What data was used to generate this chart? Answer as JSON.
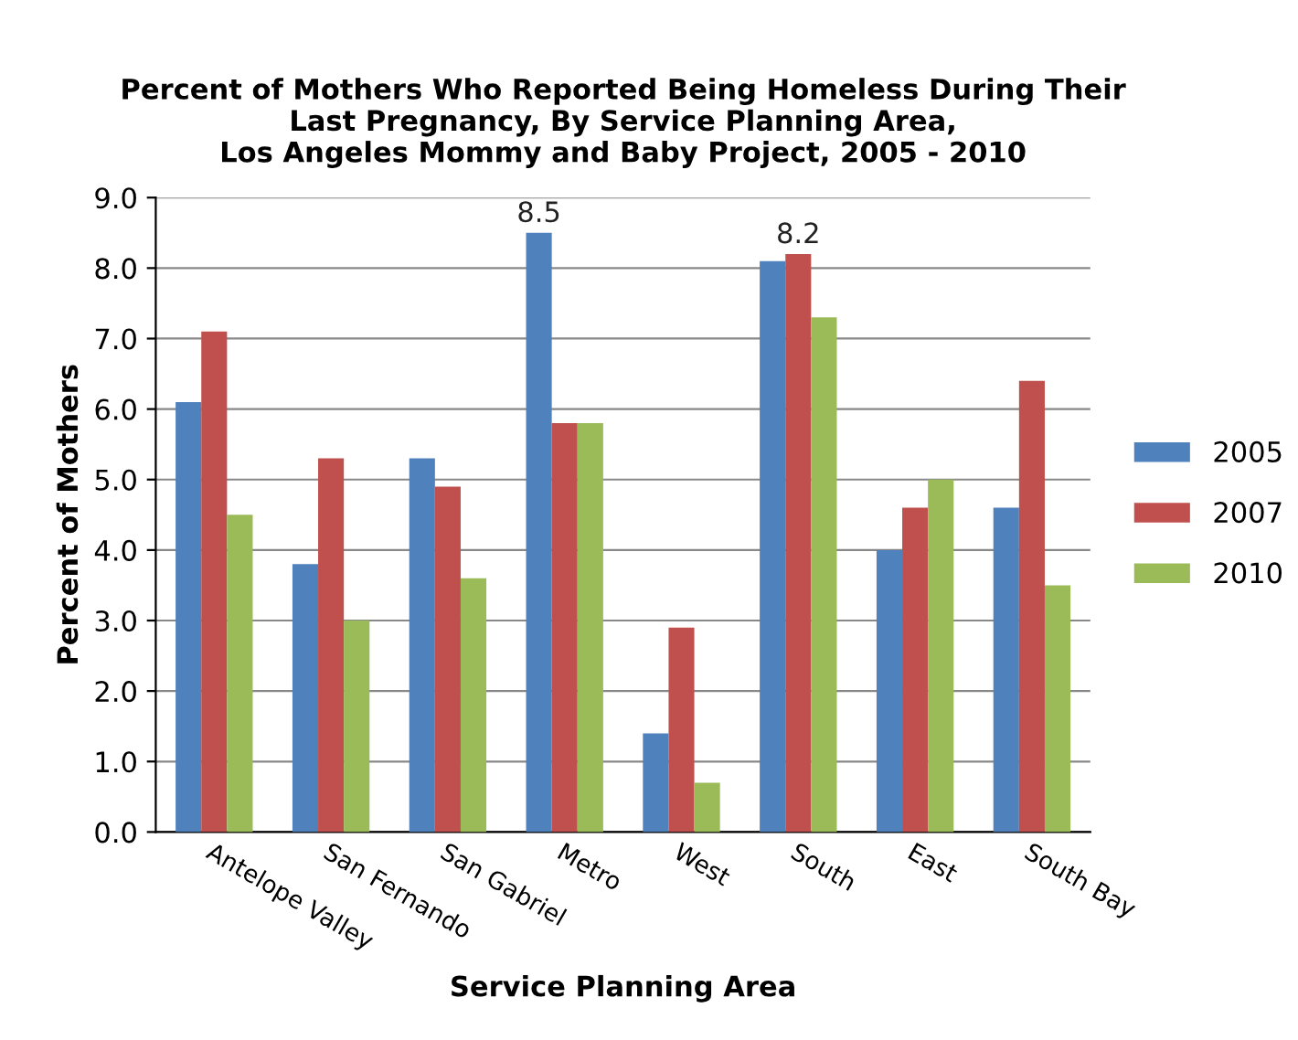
{
  "chart_data": {
    "type": "bar",
    "title": "Percent of Mothers Who Reported Being Homeless During Their\nLast Pregnancy, By Service Planning Area,\nLos Angeles Mommy and Baby Project, 2005 - 2010",
    "xlabel": "Service Planning Area",
    "ylabel": "Percent of Mothers",
    "categories": [
      "Antelope Valley",
      "San Fernando",
      "San Gabriel",
      "Metro",
      "West",
      "South",
      "East",
      "South Bay"
    ],
    "series": [
      {
        "name": "2005",
        "color": "#4f81bd",
        "values": [
          6.1,
          3.8,
          5.3,
          8.5,
          1.4,
          8.1,
          4.0,
          4.6
        ],
        "value_labels": [
          null,
          null,
          null,
          "8.5",
          null,
          null,
          null,
          null
        ]
      },
      {
        "name": "2007",
        "color": "#c0504d",
        "values": [
          7.1,
          5.3,
          4.9,
          5.8,
          2.9,
          8.2,
          4.6,
          6.4
        ],
        "value_labels": [
          null,
          null,
          null,
          null,
          null,
          "8.2",
          null,
          null
        ]
      },
      {
        "name": "2010",
        "color": "#9bbb59",
        "values": [
          4.5,
          3.0,
          3.6,
          5.8,
          0.7,
          7.3,
          5.0,
          3.5
        ]
      }
    ],
    "ylim": [
      0,
      9
    ],
    "yticks": [
      {
        "value": 0,
        "label": "0.0"
      },
      {
        "value": 1,
        "label": "1.0"
      },
      {
        "value": 2,
        "label": "2.0"
      },
      {
        "value": 3,
        "label": "3.0"
      },
      {
        "value": 4,
        "label": "4.0"
      },
      {
        "value": 5,
        "label": "5.0"
      },
      {
        "value": 6,
        "label": "6.0"
      },
      {
        "value": 7,
        "label": "7.0"
      },
      {
        "value": 8,
        "label": "8.0"
      },
      {
        "value": 9,
        "label": "9.0"
      }
    ],
    "grid": "y",
    "legend": "right"
  }
}
